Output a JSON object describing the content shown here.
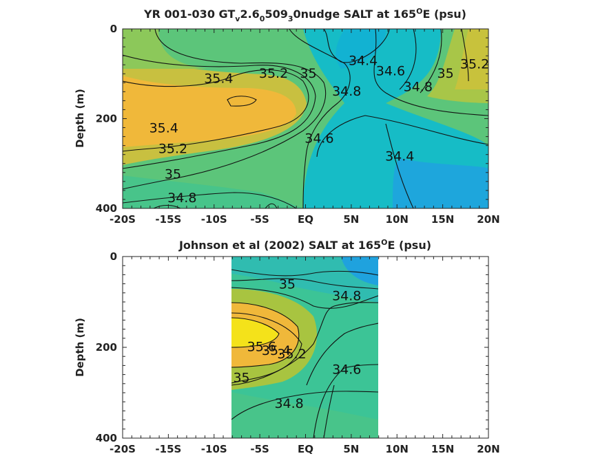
{
  "chart_data": [
    {
      "type": "heatmap",
      "title": "YR 001-030 GT_v2.6_0509_3_0nudge SALT at 165°E (psu)",
      "title_parts": {
        "a": "YR 001-030 GT",
        "b": "v",
        "c": "2.6",
        "d": "0",
        "e": "509",
        "f": "3",
        "g": "0nudge SALT at 165",
        "h": "O",
        "i": "E (psu)"
      },
      "ylabel": "Depth (m)",
      "xlim": [
        -20,
        20
      ],
      "ylim": [
        0,
        400
      ],
      "y_reversed": true,
      "xticks": [
        -20,
        -15,
        -10,
        -5,
        0,
        5,
        10,
        15,
        20
      ],
      "xtick_labels": [
        "-20S",
        "-15S",
        "-10S",
        "-5S",
        "EQ",
        "5N",
        "10N",
        "15N",
        "20N"
      ],
      "yticks": [
        0,
        200,
        400
      ],
      "ytick_labels": [
        "0",
        "200",
        "400"
      ],
      "colormap": "parula",
      "x": [
        -20,
        -10,
        -5,
        0,
        5,
        10,
        15,
        20
      ],
      "depth": [
        0,
        100,
        200,
        300,
        400
      ],
      "values": [
        [
          35.0,
          34.9,
          34.8,
          34.6,
          34.3,
          34.5,
          34.9,
          35.2
        ],
        [
          35.3,
          35.4,
          35.3,
          35.0,
          34.5,
          34.6,
          34.9,
          35.1
        ],
        [
          35.5,
          35.5,
          35.4,
          34.9,
          34.6,
          34.5,
          34.7,
          34.8
        ],
        [
          35.0,
          35.1,
          34.9,
          34.7,
          34.5,
          34.4,
          34.5,
          34.5
        ],
        [
          34.8,
          34.8,
          34.7,
          34.6,
          34.5,
          34.4,
          34.4,
          34.4
        ]
      ],
      "contour_labels": [
        {
          "text": "35.4",
          "x": -9.5,
          "y": 112
        },
        {
          "text": "35.2",
          "x": -3.5,
          "y": 100
        },
        {
          "text": "35",
          "x": 0.3,
          "y": 100
        },
        {
          "text": "34.4",
          "x": 6.3,
          "y": 72
        },
        {
          "text": "34.6",
          "x": 9.3,
          "y": 95
        },
        {
          "text": "34.8",
          "x": 12.3,
          "y": 130
        },
        {
          "text": "35",
          "x": 15.3,
          "y": 100
        },
        {
          "text": "35.2",
          "x": 18.5,
          "y": 80
        },
        {
          "text": "34.8",
          "x": 4.5,
          "y": 140
        },
        {
          "text": "35.4",
          "x": -15.5,
          "y": 222
        },
        {
          "text": "35.2",
          "x": -14.5,
          "y": 268
        },
        {
          "text": "34.6",
          "x": 1.5,
          "y": 245
        },
        {
          "text": "34.4",
          "x": 10.3,
          "y": 285
        },
        {
          "text": "35",
          "x": -14.5,
          "y": 325
        },
        {
          "text": "34.8",
          "x": -13.5,
          "y": 378
        }
      ]
    },
    {
      "type": "heatmap",
      "title": "Johnson et al (2002) SALT at 165°E (psu)",
      "title_parts": {
        "a": "Johnson et al (2002) SALT at 165",
        "h": "O",
        "i": "E (psu)"
      },
      "ylabel": "Depth (m)",
      "xlim": [
        -20,
        20
      ],
      "ylim": [
        0,
        400
      ],
      "y_reversed": true,
      "data_xrange": [
        -8,
        8
      ],
      "xticks": [
        -20,
        -15,
        -10,
        -5,
        0,
        5,
        10,
        15,
        20
      ],
      "xtick_labels": [
        "-20S",
        "-15S",
        "-10S",
        "-5S",
        "EQ",
        "5N",
        "10N",
        "15N",
        "20N"
      ],
      "yticks": [
        0,
        200,
        400
      ],
      "ytick_labels": [
        "0",
        "200",
        "400"
      ],
      "colormap": "parula",
      "x": [
        -8,
        -4,
        0,
        4,
        8
      ],
      "depth": [
        0,
        100,
        200,
        300,
        400
      ],
      "values": [
        [
          34.6,
          34.6,
          34.5,
          34.4,
          34.2
        ],
        [
          35.1,
          35.2,
          35.0,
          34.8,
          34.7
        ],
        [
          35.5,
          35.6,
          35.1,
          34.7,
          34.6
        ],
        [
          35.1,
          35.0,
          34.8,
          34.6,
          34.6
        ],
        [
          34.8,
          34.8,
          34.7,
          34.6,
          34.6
        ]
      ],
      "contour_labels": [
        {
          "text": "35",
          "x": -2.0,
          "y": 62
        },
        {
          "text": "34.8",
          "x": 4.5,
          "y": 88
        },
        {
          "text": "35.6",
          "x": -4.8,
          "y": 200
        },
        {
          "text": "35.4",
          "x": -3.2,
          "y": 208
        },
        {
          "text": "35.2",
          "x": -1.5,
          "y": 216
        },
        {
          "text": "34.6",
          "x": 4.5,
          "y": 250
        },
        {
          "text": "35",
          "x": -7.0,
          "y": 268
        },
        {
          "text": "34.8",
          "x": -1.8,
          "y": 325
        }
      ]
    }
  ]
}
